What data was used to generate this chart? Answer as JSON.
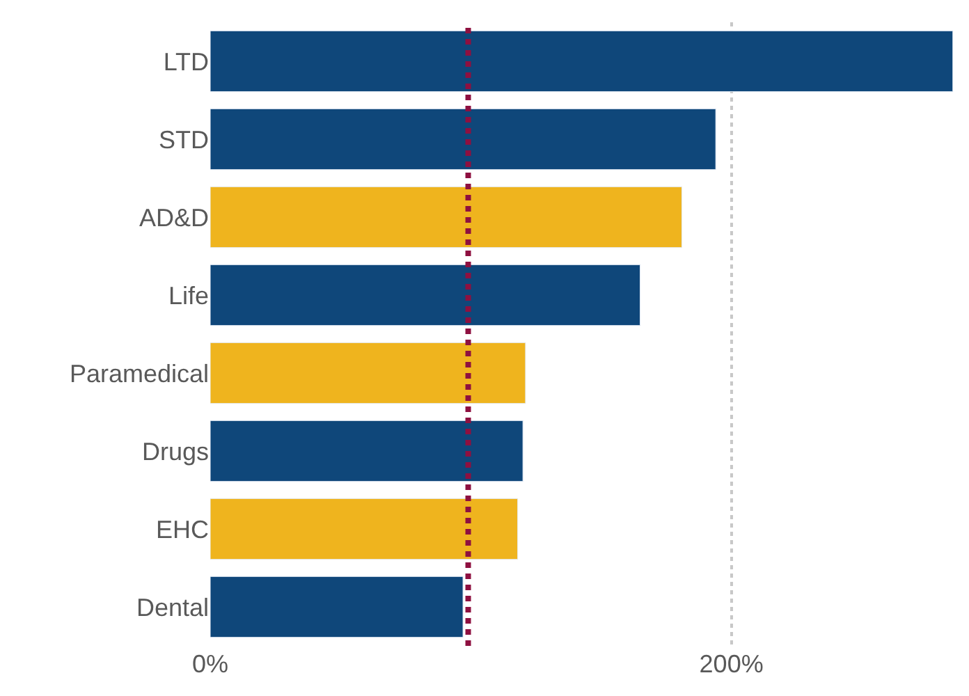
{
  "chart_data": {
    "type": "bar",
    "orientation": "horizontal",
    "categories": [
      "LTD",
      "STD",
      "AD&D",
      "Life",
      "Paramedical",
      "Drugs",
      "EHC",
      "Dental"
    ],
    "values": [
      285,
      194,
      181,
      165,
      121,
      120,
      118,
      97
    ],
    "colors": [
      "#0f477a",
      "#0f477a",
      "#efb41e",
      "#0f477a",
      "#efb41e",
      "#0f477a",
      "#efb41e",
      "#0f477a"
    ],
    "xlim": [
      0,
      288
    ],
    "xticks": [
      {
        "value": 0,
        "label": "0%"
      },
      {
        "value": 200,
        "label": "200%"
      }
    ],
    "grid": "x",
    "ref_lines": [
      {
        "axis": "x",
        "value": 99,
        "label": null,
        "color": "#8e1040",
        "line_style": "dotted"
      }
    ]
  }
}
